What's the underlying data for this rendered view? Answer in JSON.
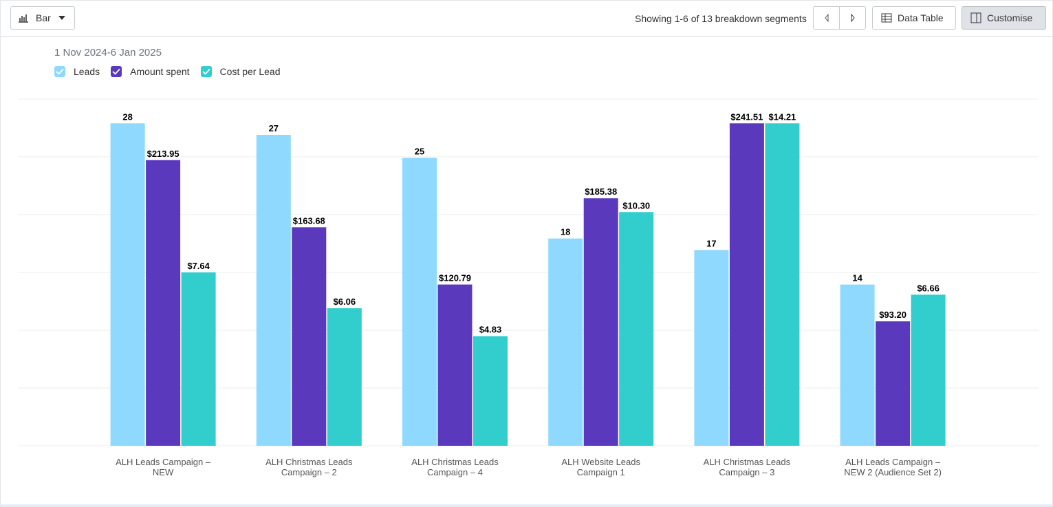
{
  "toolbar": {
    "chart_type": "Bar",
    "pagination": "Showing 1-6 of 13 breakdown segments",
    "data_table": "Data Table",
    "customise": "Customise"
  },
  "chart_data": {
    "type": "bar",
    "subtitle": "1 Nov 2024-6 Jan 2025",
    "categories": [
      "ALH Leads Campaign – NEW",
      "ALH Christmas Leads Campaign – 2",
      "ALH Christmas Leads Campaign – 4",
      "ALH Website Leads Campaign 1",
      "ALH Christmas Leads Campaign – 3",
      "ALH Leads Campaign – NEW 2 (Audience Set 2)"
    ],
    "series": [
      {
        "name": "Leads",
        "color": "#8ed9fd",
        "values": [
          28,
          27,
          25,
          18,
          17,
          14
        ]
      },
      {
        "name": "Amount spent",
        "color": "#5b39bd",
        "values": [
          213.95,
          163.68,
          120.79,
          185.38,
          241.51,
          93.2
        ],
        "value_labels": [
          "$213.95",
          "$163.68",
          "$120.79",
          "$185.38",
          "$241.51",
          "$93.20"
        ]
      },
      {
        "name": "Cost per Lead",
        "color": "#32cdcd",
        "values": [
          7.64,
          6.06,
          4.83,
          10.3,
          14.21,
          6.66
        ],
        "value_labels": [
          "$7.64",
          "$6.06",
          "$4.83",
          "$10.30",
          "$14.21",
          "$6.66"
        ]
      }
    ],
    "grid": true
  }
}
